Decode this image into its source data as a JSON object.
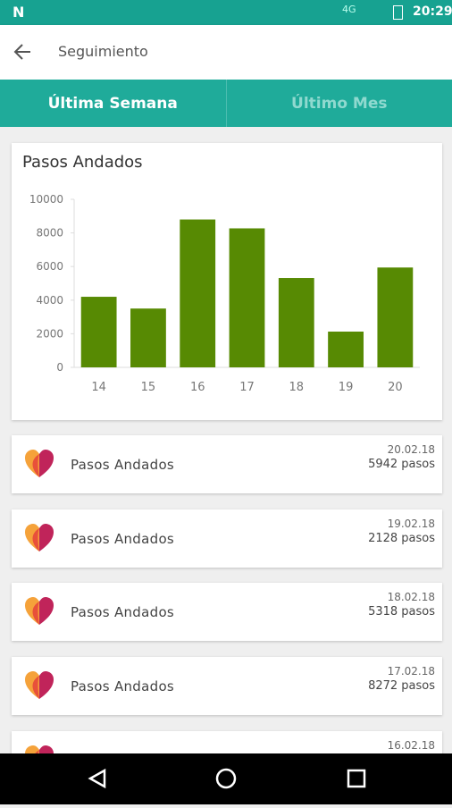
{
  "status_bar": {
    "network": "4G",
    "time": "20:29"
  },
  "header": {
    "title": "Seguimiento"
  },
  "tabs": [
    "Última Semana",
    "Último Mes"
  ],
  "chart_data": {
    "type": "bar",
    "title": "Pasos Andados",
    "categories": [
      "14",
      "15",
      "16",
      "17",
      "18",
      "19",
      "20"
    ],
    "values": [
      4200,
      3500,
      8800,
      8272,
      5318,
      2128,
      5942
    ],
    "color": "#578a03",
    "ylim": [
      0,
      10000
    ],
    "yticks": [
      0,
      2000,
      4000,
      6000,
      8000,
      10000
    ],
    "grid": false
  },
  "list": [
    {
      "title": "Pasos Andados",
      "date": "20.02.18",
      "value": "5942 pasos"
    },
    {
      "title": "Pasos Andados",
      "date": "19.02.18",
      "value": "2128 pasos"
    },
    {
      "title": "Pasos Andados",
      "date": "18.02.18",
      "value": "5318 pasos"
    },
    {
      "title": "Pasos Andados",
      "date": "17.02.18",
      "value": "8272 pasos"
    },
    {
      "date": "16.02.18"
    }
  ]
}
